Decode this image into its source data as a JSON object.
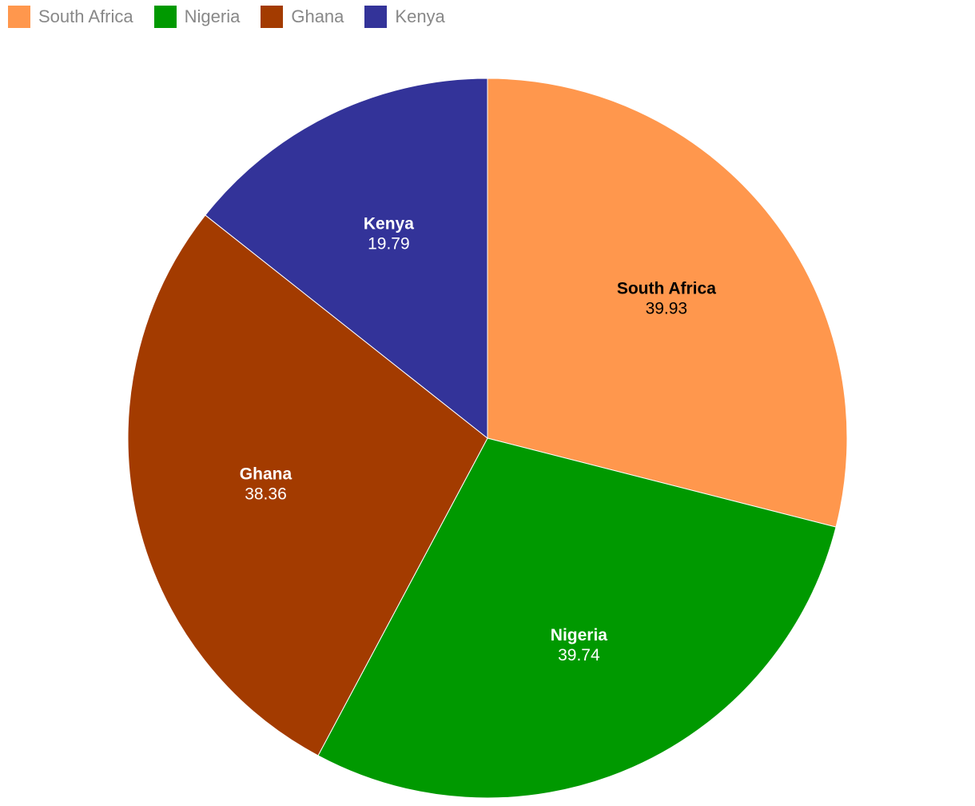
{
  "chart_data": {
    "type": "pie",
    "legend_position": "top-left",
    "categories": [
      "South Africa",
      "Nigeria",
      "Ghana",
      "Kenya"
    ],
    "values": [
      39.93,
      39.74,
      38.36,
      19.79
    ],
    "colors": [
      "#ff974d",
      "#009900",
      "#a33b00",
      "#333399"
    ]
  }
}
